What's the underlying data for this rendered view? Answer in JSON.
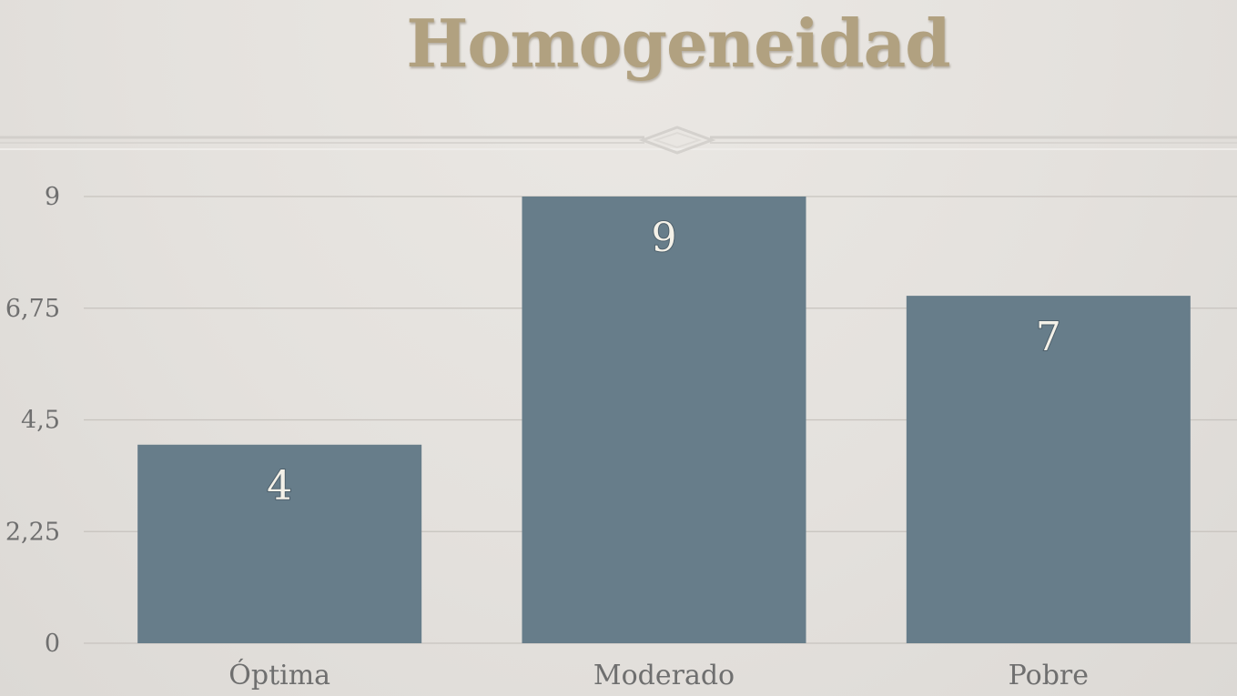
{
  "slide": {
    "title": "Homogeneidad"
  },
  "colors": {
    "background": "#e4e1dd",
    "title": "#b1a180",
    "bar": "#677d8a",
    "gridline": "#c7c3be",
    "axis_text": "#6f6f6f",
    "data_label": "#f4f1e8"
  },
  "chart_data": {
    "type": "bar",
    "categories": [
      "Óptima",
      "Moderado",
      "Pobre"
    ],
    "values": [
      4,
      9,
      7
    ],
    "data_labels": [
      "4",
      "9",
      "7"
    ],
    "ylim": [
      0,
      9
    ],
    "yticks": [
      0,
      2.25,
      4.5,
      6.75,
      9
    ],
    "ytick_labels": [
      "0",
      "2,25",
      "4,5",
      "6,75",
      "9"
    ],
    "xlabel": "",
    "ylabel": "",
    "grid": true,
    "legend": "none"
  }
}
